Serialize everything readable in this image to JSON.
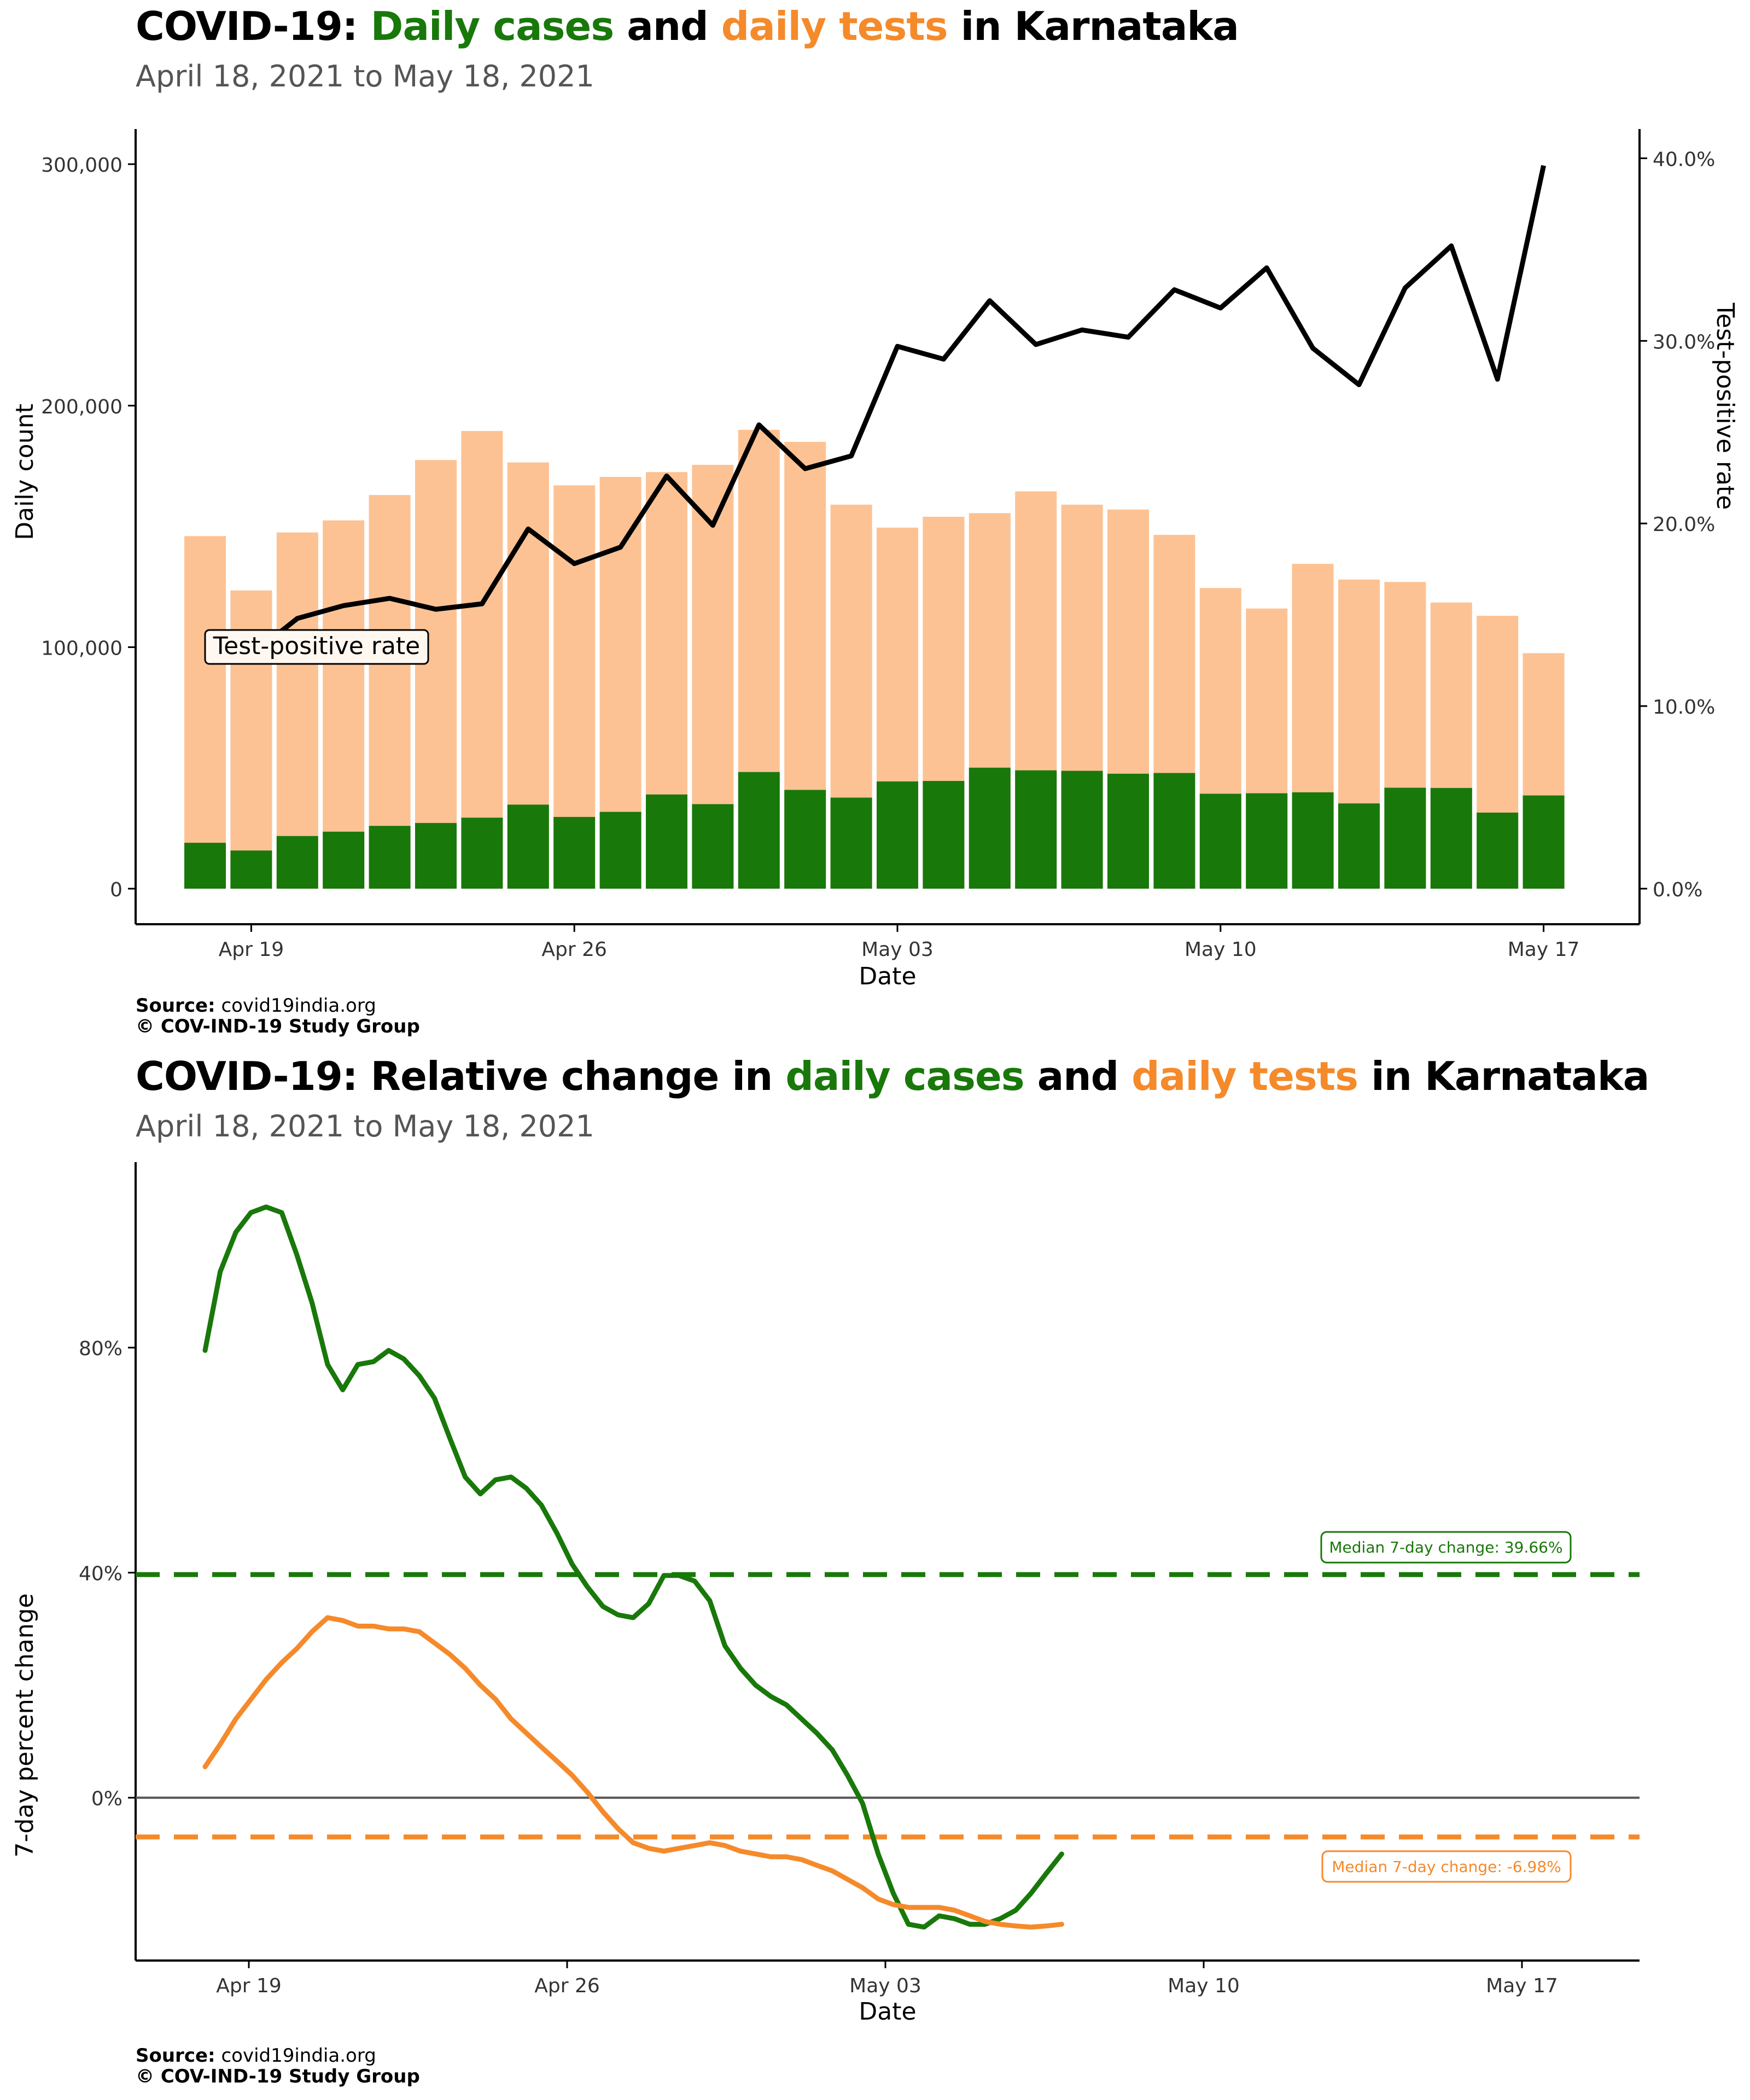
{
  "chart_data": [
    {
      "type": "bar",
      "title_parts": {
        "prefix": "COVID-19: ",
        "cases": "Daily cases",
        "and": " and ",
        "tests": "daily tests",
        "suffix": " in Karnataka"
      },
      "subtitle": "April 18, 2021 to May 18, 2021",
      "xlabel": "Date",
      "ylabel": "Daily count",
      "ylabel_right": "Test-positive rate",
      "x_ticks": [
        "Apr 19",
        "Apr 26",
        "May 03",
        "May 10",
        "May 17"
      ],
      "y_ticks": [
        "0",
        "100,000",
        "200,000",
        "300,000"
      ],
      "y_ticks_right": [
        "0.0%",
        "10.0%",
        "20.0%",
        "30.0%",
        "40.0%"
      ],
      "ylim": [
        0,
        310000
      ],
      "ylim_right": [
        0,
        0.41
      ],
      "dates": [
        "2021-04-18",
        "2021-04-19",
        "2021-04-20",
        "2021-04-21",
        "2021-04-22",
        "2021-04-23",
        "2021-04-24",
        "2021-04-25",
        "2021-04-26",
        "2021-04-27",
        "2021-04-28",
        "2021-04-29",
        "2021-04-30",
        "2021-05-01",
        "2021-05-02",
        "2021-05-03",
        "2021-05-04",
        "2021-05-05",
        "2021-05-06",
        "2021-05-07",
        "2021-05-08",
        "2021-05-09",
        "2021-05-10",
        "2021-05-11",
        "2021-05-12",
        "2021-05-13",
        "2021-05-14",
        "2021-05-15",
        "2021-05-16",
        "2021-05-17"
      ],
      "tests": [
        146000,
        123500,
        147500,
        152500,
        163000,
        177500,
        189500,
        176500,
        167000,
        170500,
        172500,
        175500,
        190000,
        185000,
        159000,
        149500,
        154000,
        155500,
        164500,
        159000,
        157000,
        146500,
        124500,
        116000,
        134500,
        128000,
        127000,
        118500,
        113000,
        97500
      ],
      "cases": [
        19000,
        15800,
        21800,
        23600,
        26000,
        27200,
        29400,
        34800,
        29700,
        31800,
        39000,
        35000,
        48300,
        40900,
        37700,
        44400,
        44600,
        50100,
        49000,
        48800,
        47600,
        47900,
        39300,
        39500,
        39900,
        35300,
        41800,
        41700,
        31500,
        38600
      ],
      "test_positive_rate": [
        0.13,
        0.128,
        0.148,
        0.155,
        0.159,
        0.153,
        0.156,
        0.197,
        0.178,
        0.187,
        0.226,
        0.199,
        0.254,
        0.23,
        0.237,
        0.297,
        0.29,
        0.322,
        0.298,
        0.306,
        0.302,
        0.328,
        0.318,
        0.34,
        0.296,
        0.276,
        0.329,
        0.352,
        0.279,
        0.396
      ],
      "line_label": "Test-positive rate",
      "colors": {
        "cases": "#19780a",
        "tests": "#fdc293",
        "line": "#000000"
      },
      "source_label": "Source:",
      "source_value": "covid19india.org",
      "copyright": "© COV-IND-19 Study Group"
    },
    {
      "type": "line",
      "title_parts": {
        "prefix": "COVID-19: Relative change in ",
        "cases": "daily cases",
        "and": " and ",
        "tests": "daily tests",
        "suffix": " in Karnataka"
      },
      "subtitle": "April 18, 2021 to May 18, 2021",
      "xlabel": "Date",
      "ylabel": "7-day percent change",
      "x_ticks": [
        "Apr 19",
        "Apr 26",
        "May 03",
        "May 10",
        "May 17"
      ],
      "y_ticks": [
        "0%",
        "40%",
        "80%"
      ],
      "ylim": [
        -0.27,
        1.12
      ],
      "cases_change": [
        [
          -0.5,
          0.795
        ],
        [
          -0.17,
          0.935
        ],
        [
          0.17,
          1.005
        ],
        [
          0.5,
          1.04
        ],
        [
          0.83,
          1.05
        ],
        [
          1.17,
          1.04
        ],
        [
          1.5,
          0.965
        ],
        [
          1.83,
          0.88
        ],
        [
          2.17,
          0.77
        ],
        [
          2.5,
          0.725
        ],
        [
          2.83,
          0.77
        ],
        [
          3.17,
          0.775
        ],
        [
          3.5,
          0.795
        ],
        [
          3.83,
          0.78
        ],
        [
          4.17,
          0.75
        ],
        [
          4.5,
          0.71
        ],
        [
          4.83,
          0.64
        ],
        [
          5.17,
          0.57
        ],
        [
          5.5,
          0.54
        ],
        [
          5.83,
          0.565
        ],
        [
          6.17,
          0.57
        ],
        [
          6.5,
          0.55
        ],
        [
          6.83,
          0.52
        ],
        [
          7.17,
          0.47
        ],
        [
          7.5,
          0.415
        ],
        [
          7.83,
          0.375
        ],
        [
          8.17,
          0.34
        ],
        [
          8.5,
          0.325
        ],
        [
          8.83,
          0.32
        ],
        [
          9.17,
          0.345
        ],
        [
          9.5,
          0.395
        ],
        [
          9.83,
          0.395
        ],
        [
          10.17,
          0.385
        ],
        [
          10.5,
          0.35
        ],
        [
          10.83,
          0.27
        ],
        [
          11.17,
          0.23
        ],
        [
          11.5,
          0.2
        ],
        [
          11.83,
          0.18
        ],
        [
          12.17,
          0.165
        ],
        [
          12.5,
          0.14
        ],
        [
          12.83,
          0.115
        ],
        [
          13.17,
          0.085
        ],
        [
          13.5,
          0.04
        ],
        [
          13.83,
          -0.01
        ],
        [
          14.17,
          -0.1
        ],
        [
          14.5,
          -0.17
        ],
        [
          14.83,
          -0.225
        ],
        [
          15.17,
          -0.23
        ],
        [
          15.5,
          -0.21
        ],
        [
          15.83,
          -0.215
        ],
        [
          16.17,
          -0.225
        ],
        [
          16.5,
          -0.225
        ],
        [
          16.83,
          -0.215
        ],
        [
          17.17,
          -0.2
        ],
        [
          17.5,
          -0.17
        ],
        [
          17.83,
          -0.135
        ],
        [
          18.17,
          -0.1
        ]
      ],
      "tests_change": [
        [
          -0.5,
          0.055
        ],
        [
          -0.17,
          0.095
        ],
        [
          0.17,
          0.14
        ],
        [
          0.5,
          0.175
        ],
        [
          0.83,
          0.21
        ],
        [
          1.17,
          0.24
        ],
        [
          1.5,
          0.265
        ],
        [
          1.83,
          0.295
        ],
        [
          2.17,
          0.32
        ],
        [
          2.5,
          0.315
        ],
        [
          2.83,
          0.305
        ],
        [
          3.17,
          0.305
        ],
        [
          3.5,
          0.3
        ],
        [
          3.83,
          0.3
        ],
        [
          4.17,
          0.295
        ],
        [
          4.5,
          0.275
        ],
        [
          4.83,
          0.255
        ],
        [
          5.17,
          0.23
        ],
        [
          5.5,
          0.2
        ],
        [
          5.83,
          0.175
        ],
        [
          6.17,
          0.14
        ],
        [
          6.5,
          0.115
        ],
        [
          6.83,
          0.09
        ],
        [
          7.17,
          0.065
        ],
        [
          7.5,
          0.04
        ],
        [
          7.83,
          0.01
        ],
        [
          8.17,
          -0.025
        ],
        [
          8.5,
          -0.055
        ],
        [
          8.83,
          -0.08
        ],
        [
          9.17,
          -0.09
        ],
        [
          9.5,
          -0.095
        ],
        [
          9.83,
          -0.09
        ],
        [
          10.17,
          -0.085
        ],
        [
          10.5,
          -0.08
        ],
        [
          10.83,
          -0.085
        ],
        [
          11.17,
          -0.095
        ],
        [
          11.5,
          -0.1
        ],
        [
          11.83,
          -0.105
        ],
        [
          12.17,
          -0.105
        ],
        [
          12.5,
          -0.11
        ],
        [
          12.83,
          -0.12
        ],
        [
          13.17,
          -0.13
        ],
        [
          13.5,
          -0.145
        ],
        [
          13.83,
          -0.16
        ],
        [
          14.17,
          -0.18
        ],
        [
          14.5,
          -0.19
        ],
        [
          14.83,
          -0.195
        ],
        [
          15.17,
          -0.195
        ],
        [
          15.5,
          -0.195
        ],
        [
          15.83,
          -0.2
        ],
        [
          16.17,
          -0.21
        ],
        [
          16.5,
          -0.22
        ],
        [
          16.83,
          -0.225
        ],
        [
          17.17,
          -0.228
        ],
        [
          17.5,
          -0.23
        ],
        [
          17.83,
          -0.228
        ],
        [
          18.17,
          -0.225
        ]
      ],
      "median_cases": 0.3966,
      "median_tests": -0.0698,
      "median_cases_label": "Median 7-day change: 39.66%",
      "median_tests_label": "Median 7-day change: -6.98%",
      "colors": {
        "cases": "#19780a",
        "tests": "#f58a2b",
        "zero_line": "#555555"
      },
      "source_label": "Source:",
      "source_value": "covid19india.org",
      "copyright": "© COV-IND-19 Study Group"
    }
  ]
}
